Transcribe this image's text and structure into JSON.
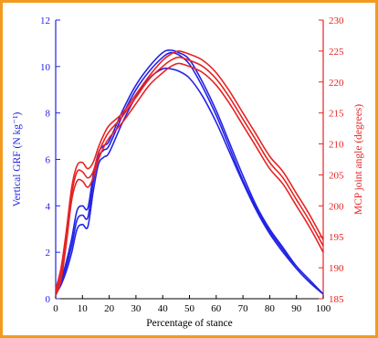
{
  "colors": {
    "frame": "#f39a1e",
    "left_axis": "#2323e6",
    "right_axis": "#e62323",
    "x_axis": "#000000"
  },
  "chart_data": {
    "type": "line",
    "title": "",
    "xlabel": "Percentage of stance",
    "ylabel_left": "Vertical GRF (N kg⁻¹)",
    "ylabel_right": "MCP joint angle (degrees)",
    "xlim": [
      0,
      100
    ],
    "ylim_left": [
      0,
      12
    ],
    "ylim_right": [
      185,
      230
    ],
    "x_ticks": [
      0,
      10,
      20,
      30,
      40,
      50,
      60,
      70,
      80,
      90,
      100
    ],
    "y_left_ticks": [
      0,
      2,
      4,
      6,
      8,
      10,
      12
    ],
    "y_right_ticks": [
      185,
      190,
      195,
      200,
      205,
      210,
      215,
      220,
      225,
      230
    ],
    "grid": false,
    "legend": "none",
    "x": [
      0,
      2,
      4,
      6,
      8,
      10,
      12,
      14,
      16,
      18,
      20,
      25,
      30,
      35,
      40,
      43,
      46,
      50,
      55,
      60,
      65,
      70,
      75,
      80,
      85,
      90,
      95,
      100
    ],
    "series": [
      {
        "axis": "left",
        "color": "#2323e6",
        "linestyle": "solid",
        "values": [
          0.2,
          0.7,
          1.4,
          2.3,
          3.4,
          3.6,
          3.5,
          5.0,
          6.1,
          6.4,
          6.6,
          7.9,
          9.0,
          9.8,
          10.4,
          10.6,
          10.5,
          10.1,
          9.1,
          7.9,
          6.5,
          5.1,
          3.9,
          2.9,
          2.1,
          1.3,
          0.7,
          0.2
        ]
      },
      {
        "axis": "left",
        "color": "#2323e6",
        "linestyle": "solid",
        "values": [
          0.2,
          0.8,
          1.6,
          2.6,
          3.8,
          4.0,
          3.9,
          5.3,
          6.3,
          6.6,
          6.8,
          8.1,
          9.2,
          10.0,
          10.6,
          10.7,
          10.6,
          10.3,
          9.3,
          8.1,
          6.7,
          5.3,
          4.0,
          3.0,
          2.2,
          1.4,
          0.8,
          0.2
        ]
      },
      {
        "axis": "left",
        "color": "#2323e6",
        "linestyle": "solid",
        "values": [
          0.2,
          0.6,
          1.2,
          2.0,
          3.0,
          3.2,
          3.1,
          4.6,
          5.8,
          6.1,
          6.3,
          7.6,
          8.7,
          9.5,
          9.9,
          9.9,
          9.8,
          9.5,
          8.7,
          7.6,
          6.3,
          5.0,
          3.8,
          2.8,
          2.0,
          1.3,
          0.7,
          0.2
        ]
      },
      {
        "axis": "right",
        "color": "#e62323",
        "linestyle": "solid",
        "values": [
          186.5,
          190.0,
          196.0,
          203.0,
          206.5,
          207.0,
          206.0,
          207.0,
          209.5,
          211.5,
          213.0,
          215.0,
          218.0,
          221.0,
          223.5,
          224.5,
          225.0,
          224.5,
          223.5,
          221.5,
          218.5,
          215.0,
          211.5,
          208.0,
          205.5,
          202.0,
          198.5,
          194.5
        ]
      },
      {
        "axis": "right",
        "color": "#e62323",
        "linestyle": "solid",
        "values": [
          186.0,
          189.0,
          195.0,
          202.0,
          205.5,
          205.5,
          204.5,
          205.5,
          208.5,
          210.5,
          212.0,
          214.5,
          217.5,
          220.5,
          222.5,
          223.5,
          224.0,
          223.5,
          222.5,
          220.5,
          217.5,
          214.0,
          210.5,
          207.0,
          204.5,
          201.0,
          197.5,
          193.5
        ]
      },
      {
        "axis": "right",
        "color": "#e62323",
        "linestyle": "solid",
        "values": [
          185.5,
          188.0,
          194.0,
          201.0,
          204.0,
          204.0,
          203.0,
          204.5,
          207.5,
          209.5,
          211.0,
          213.5,
          216.5,
          219.5,
          221.5,
          222.5,
          223.0,
          222.5,
          221.5,
          219.5,
          216.5,
          213.0,
          209.5,
          206.0,
          203.5,
          200.0,
          196.5,
          192.5
        ]
      }
    ]
  }
}
